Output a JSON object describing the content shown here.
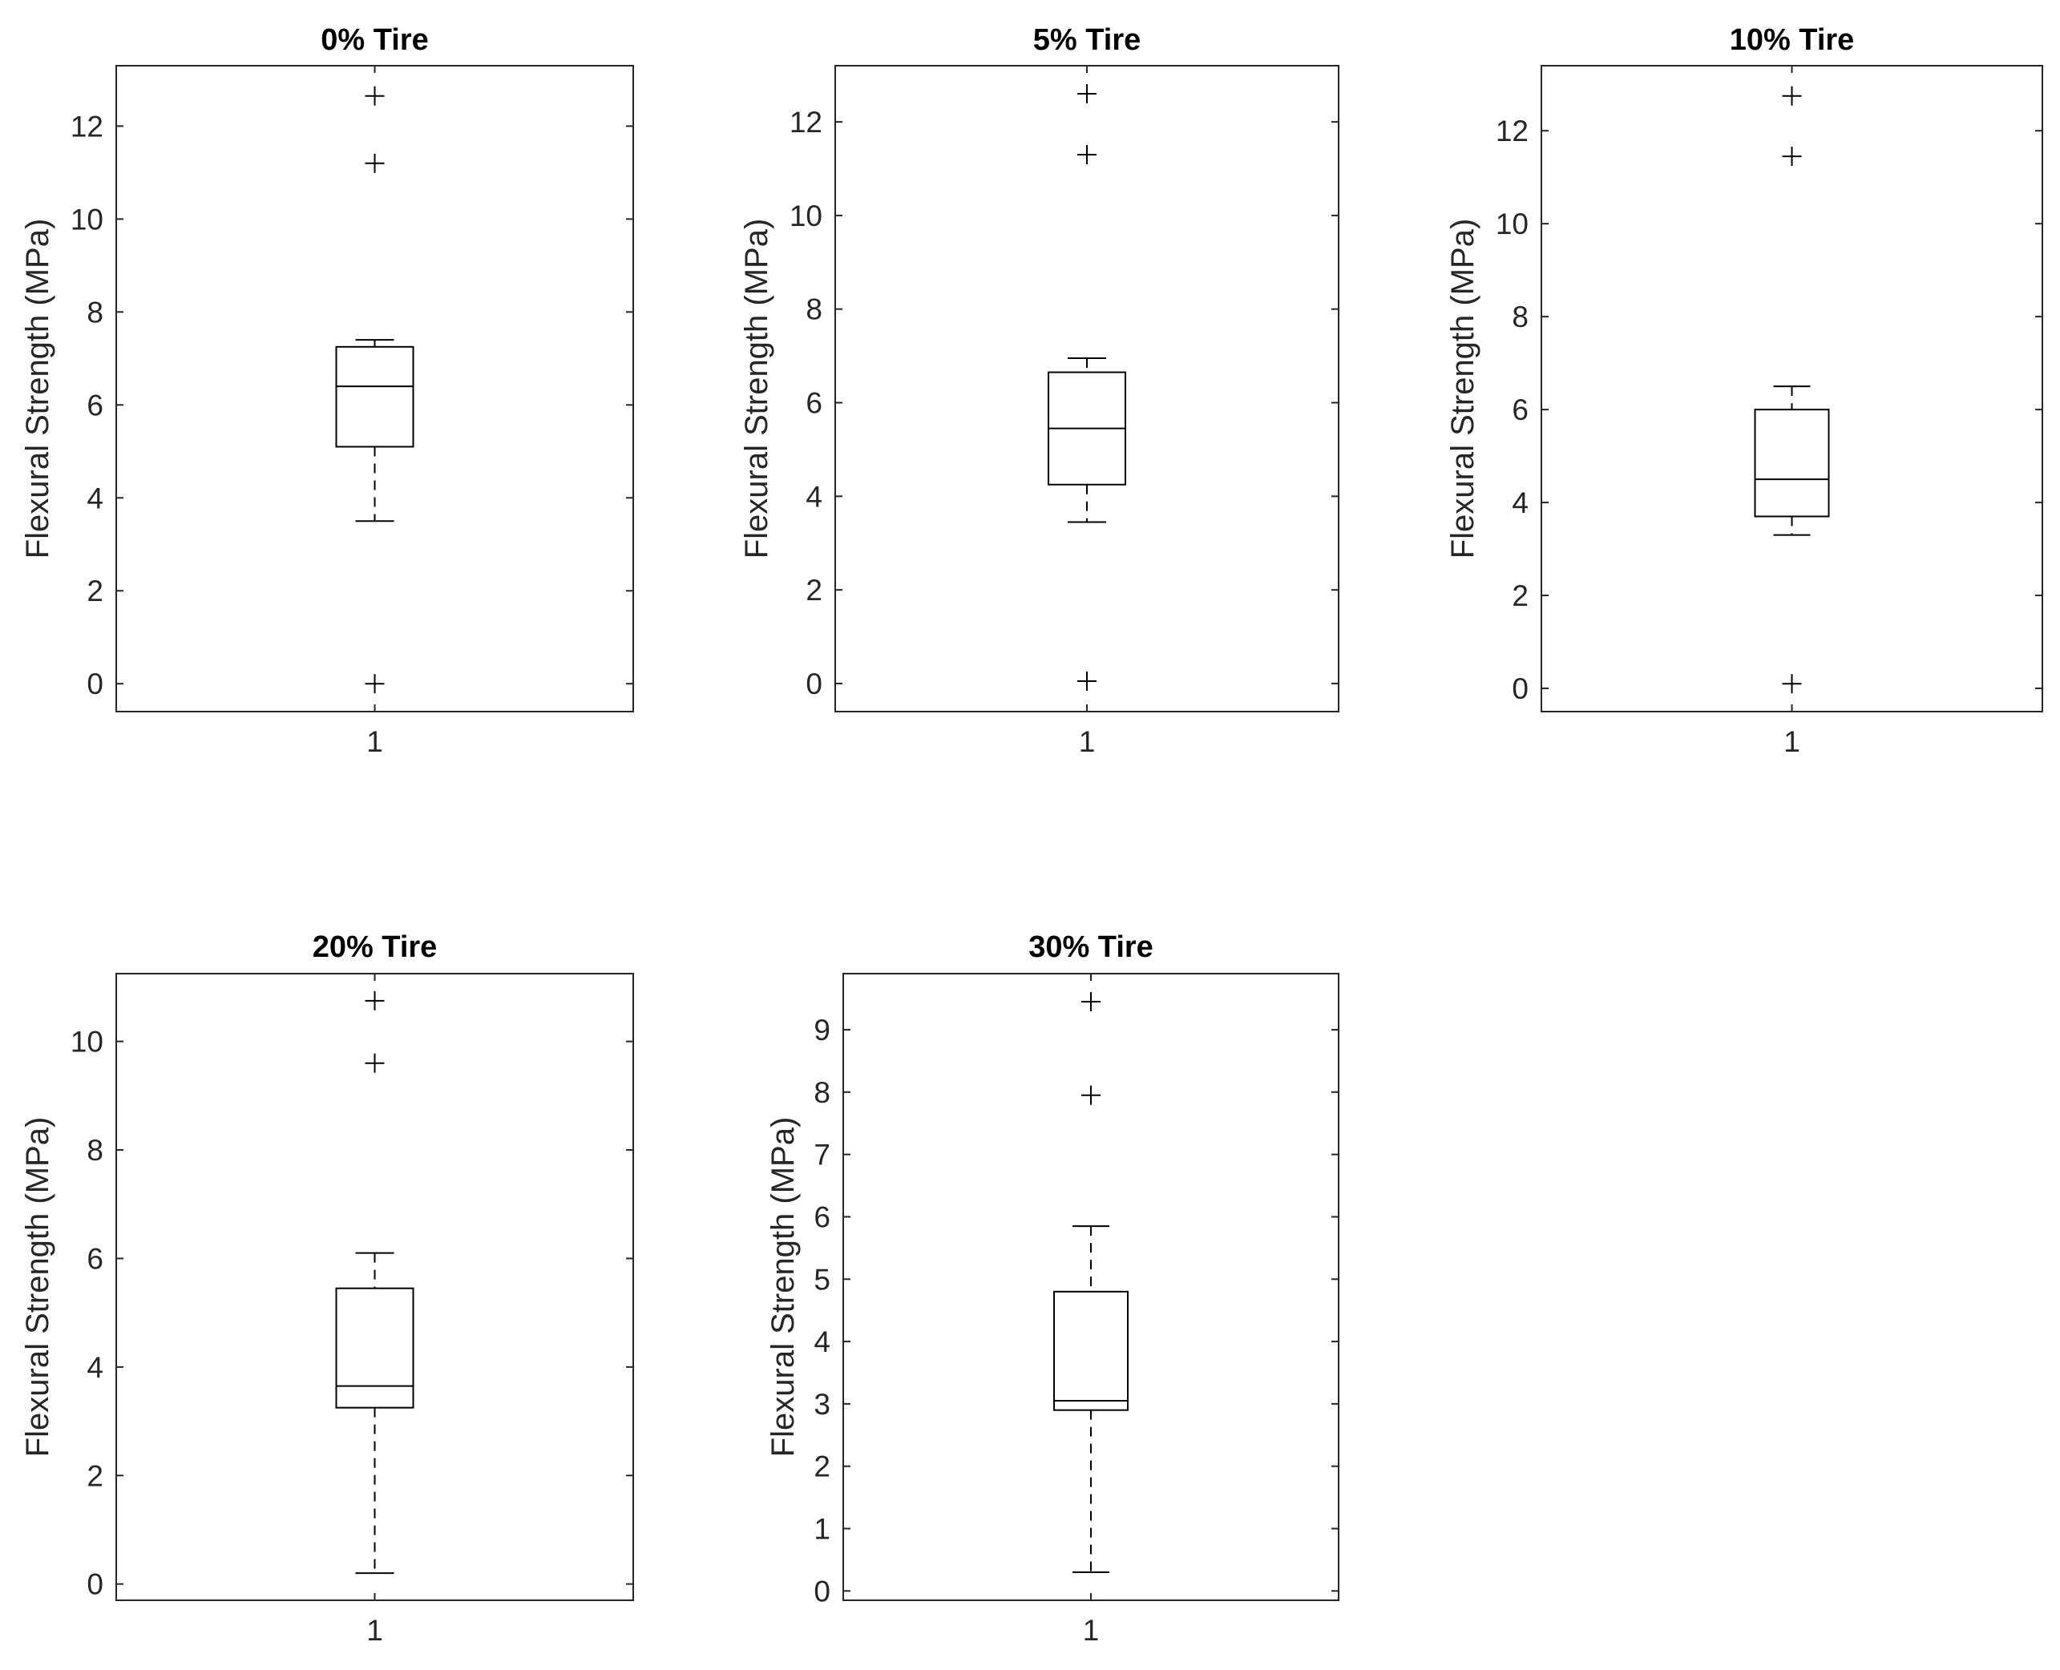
{
  "chart_data": [
    {
      "type": "box",
      "title": "0% Tire",
      "ylabel": "Flexural Strength (MPa)",
      "xticks": [
        "1"
      ],
      "yticks": [
        0,
        2,
        4,
        6,
        8,
        10,
        12
      ],
      "ylim": [
        -0.6,
        13.3
      ],
      "boxes": [
        {
          "label": "1",
          "whisker_low": 3.5,
          "q1": 5.1,
          "median": 6.4,
          "q3": 7.25,
          "whisker_high": 7.4,
          "outliers": [
            12.65,
            11.2,
            0.0
          ]
        }
      ]
    },
    {
      "type": "box",
      "title": "5% Tire",
      "ylabel": "Flexural Strength (MPa)",
      "xticks": [
        "1"
      ],
      "yticks": [
        0,
        2,
        4,
        6,
        8,
        10,
        12
      ],
      "ylim": [
        -0.6,
        13.2
      ],
      "boxes": [
        {
          "label": "1",
          "whisker_low": 3.45,
          "q1": 4.25,
          "median": 5.45,
          "q3": 6.65,
          "whisker_high": 6.95,
          "outliers": [
            12.6,
            11.3,
            0.05
          ]
        }
      ]
    },
    {
      "type": "box",
      "title": "10% Tire",
      "ylabel": "Flexural Strength (MPa)",
      "xticks": [
        "1"
      ],
      "yticks": [
        0,
        2,
        4,
        6,
        8,
        10,
        12
      ],
      "ylim": [
        -0.5,
        13.4
      ],
      "boxes": [
        {
          "label": "1",
          "whisker_low": 3.3,
          "q1": 3.7,
          "median": 4.5,
          "q3": 6.0,
          "whisker_high": 6.5,
          "outliers": [
            12.75,
            11.45,
            0.1
          ]
        }
      ]
    },
    {
      "type": "box",
      "title": "20% Tire",
      "ylabel": "Flexural Strength (MPa)",
      "xticks": [
        "1"
      ],
      "yticks": [
        0,
        2,
        4,
        6,
        8,
        10
      ],
      "ylim": [
        -0.3,
        11.25
      ],
      "boxes": [
        {
          "label": "1",
          "whisker_low": 0.2,
          "q1": 3.25,
          "median": 3.65,
          "q3": 5.45,
          "whisker_high": 6.1,
          "outliers": [
            10.75,
            9.6
          ]
        }
      ]
    },
    {
      "type": "box",
      "title": "30% Tire",
      "ylabel": "Flexural Strength (MPa)",
      "xticks": [
        "1"
      ],
      "yticks": [
        0,
        1,
        2,
        3,
        4,
        5,
        6,
        7,
        8,
        9
      ],
      "ylim": [
        -0.15,
        9.9
      ],
      "boxes": [
        {
          "label": "1",
          "whisker_low": 0.3,
          "q1": 2.9,
          "median": 3.05,
          "q3": 4.8,
          "whisker_high": 5.85,
          "outliers": [
            9.45,
            7.95
          ]
        }
      ]
    }
  ]
}
